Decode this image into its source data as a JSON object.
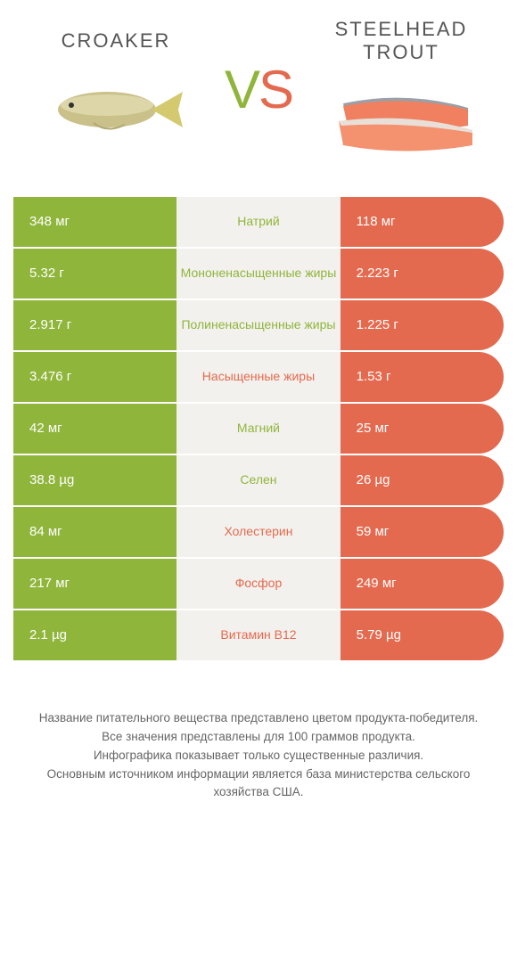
{
  "colors": {
    "green": "#8fb53b",
    "orange": "#e46a4f",
    "light_bg": "#f3f1ed",
    "text_gray": "#555"
  },
  "header": {
    "left_title": "Croaker",
    "right_title": "Steelhead trout",
    "vs_v": "V",
    "vs_s": "S"
  },
  "rows": [
    {
      "left": "348 мг",
      "mid": "Натрий",
      "right": "118 мг",
      "winner": "left"
    },
    {
      "left": "5.32 г",
      "mid": "Мононенасыщенные жиры",
      "right": "2.223 г",
      "winner": "left"
    },
    {
      "left": "2.917 г",
      "mid": "Полиненасыщенные жиры",
      "right": "1.225 г",
      "winner": "left"
    },
    {
      "left": "3.476 г",
      "mid": "Насыщенные жиры",
      "right": "1.53 г",
      "winner": "right"
    },
    {
      "left": "42 мг",
      "mid": "Магний",
      "right": "25 мг",
      "winner": "left"
    },
    {
      "left": "38.8 µg",
      "mid": "Селен",
      "right": "26 µg",
      "winner": "left"
    },
    {
      "left": "84 мг",
      "mid": "Холестерин",
      "right": "59 мг",
      "winner": "right"
    },
    {
      "left": "217 мг",
      "mid": "Фосфор",
      "right": "249 мг",
      "winner": "right"
    },
    {
      "left": "2.1 µg",
      "mid": "Витамин B12",
      "right": "5.79 µg",
      "winner": "right"
    }
  ],
  "footer": {
    "line1": "Название питательного вещества представлено цветом продукта-победителя.",
    "line2": "Все значения представлены для 100 граммов продукта.",
    "line3": "Инфографика показывает только существенные различия.",
    "line4": "Основным источником информации является база министерства сельского хозяйства США."
  }
}
